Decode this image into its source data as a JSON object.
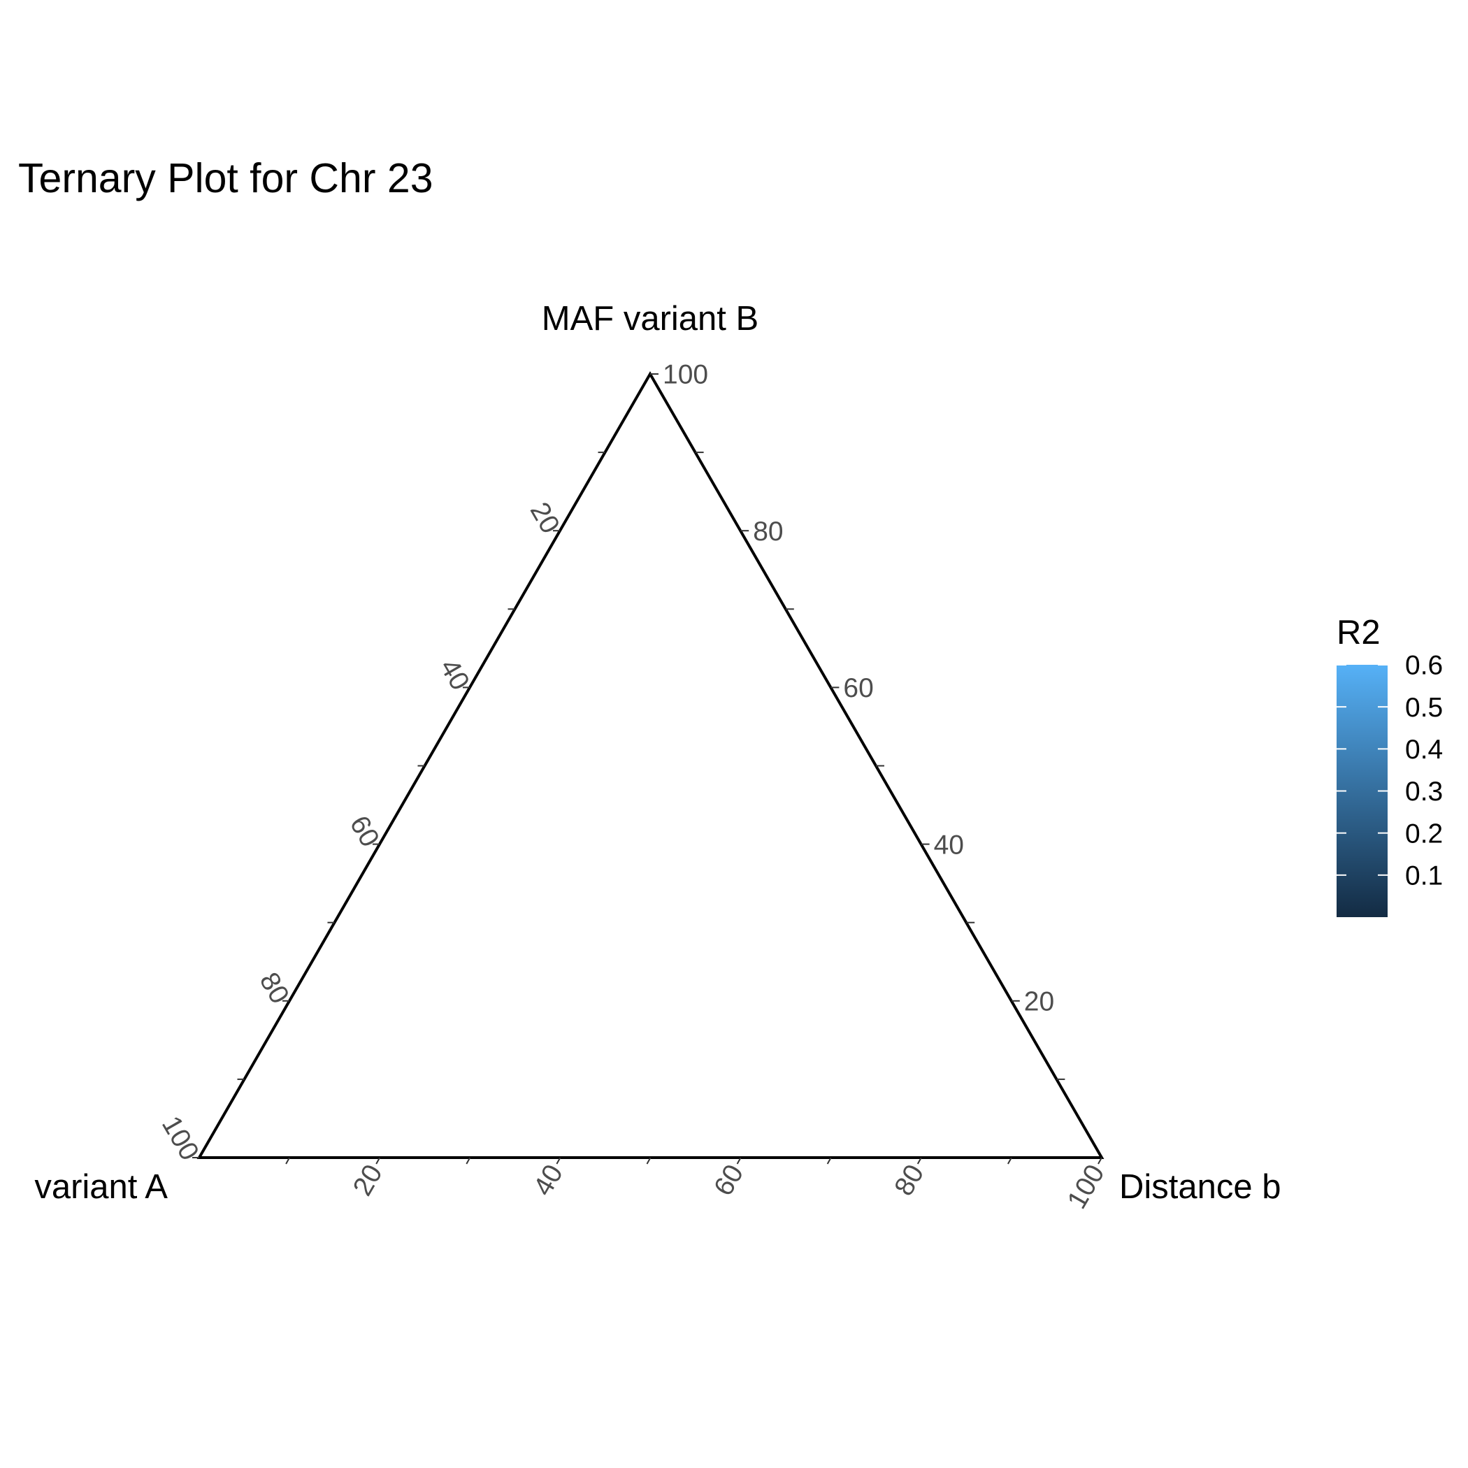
{
  "chart_data": {
    "type": "ternary",
    "title": "Ternary Plot for Chr 23",
    "axes": {
      "left": {
        "label": "MAF variant A",
        "visible_label": "variant A"
      },
      "top": {
        "label": "MAF variant B"
      },
      "right": {
        "label": "Distance b"
      }
    },
    "ticks": [
      "20",
      "40",
      "60",
      "80",
      "100"
    ],
    "ternary_ticks": [
      20,
      40,
      60,
      80,
      100
    ],
    "range": [
      0,
      100
    ],
    "grid": false,
    "points": [],
    "legend": {
      "title": "R2",
      "type": "colorbar",
      "placement": "right",
      "min": 0,
      "max": 0.6,
      "color_low": "#132B43",
      "color_high": "#56B1F7",
      "labels": [
        "0.1",
        "0.2",
        "0.3",
        "0.4",
        "0.5",
        "0.6"
      ],
      "values": [
        0.1,
        0.2,
        0.3,
        0.4,
        0.5,
        0.6
      ]
    }
  }
}
